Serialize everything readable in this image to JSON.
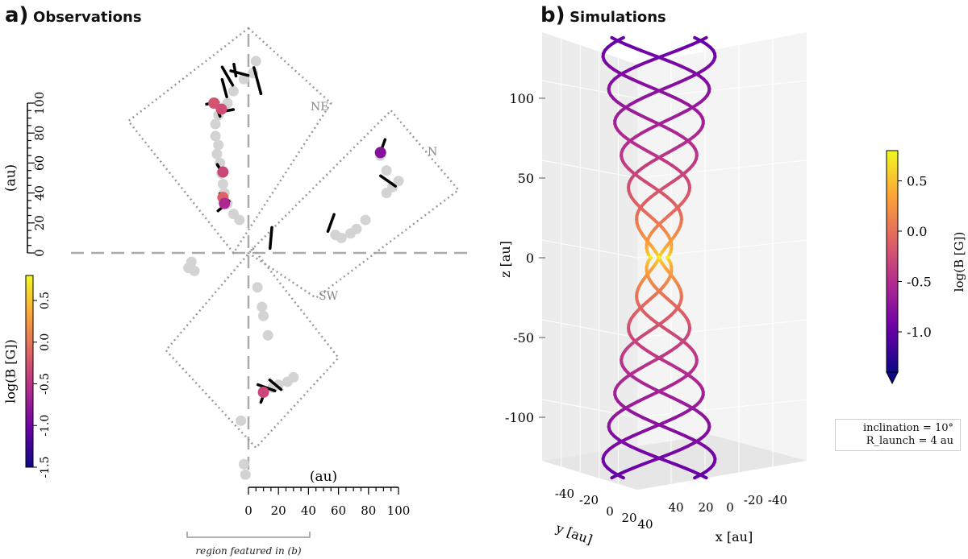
{
  "panel_a": {
    "letter": "a)",
    "title": "Observations",
    "region_labels": [
      "NE",
      "N",
      "SW"
    ],
    "region_note": "region featured in (b)"
  },
  "panel_b": {
    "letter": "b)",
    "title": "Simulations"
  },
  "colorbar_a": {
    "label": "log(B [G])",
    "ticks": [
      "0.5",
      "0.0",
      "-0.5",
      "-1.0",
      "-1.5"
    ],
    "colors": [
      "#0d0887",
      "#6a00a8",
      "#b12a90",
      "#e16462",
      "#fca636",
      "#f0f921"
    ]
  },
  "colorbar_b": {
    "label": "log(B [G])",
    "ticks": [
      "0.5",
      "0.0",
      "-0.5",
      "-1.0"
    ]
  },
  "legend": {
    "line1": "inclination = 10°",
    "line2": "R_launch = 4 au"
  },
  "chart_data": [
    {
      "type": "scatter",
      "panel": "a",
      "xlabel": "(au)",
      "ylabel": "(au)",
      "x_ticks": [
        "0",
        "20",
        "40",
        "60",
        "80",
        "100"
      ],
      "y_ticks": [
        "0",
        "20",
        "40",
        "60",
        "80",
        "100"
      ],
      "xlim": [
        -140,
        150
      ],
      "ylim": [
        -150,
        150
      ],
      "grid": false,
      "gray_points": [
        [
          3,
          120
        ],
        [
          5,
          128
        ],
        [
          -3,
          116
        ],
        [
          -10,
          108
        ],
        [
          -14,
          100
        ],
        [
          -20,
          92
        ],
        [
          -22,
          86
        ],
        [
          -22,
          78
        ],
        [
          -20,
          72
        ],
        [
          -21,
          66
        ],
        [
          -19,
          60
        ],
        [
          -18,
          53
        ],
        [
          -17,
          46
        ],
        [
          -16,
          40
        ],
        [
          -14,
          33
        ],
        [
          -10,
          26
        ],
        [
          -6,
          22
        ],
        [
          -38,
          -6
        ],
        [
          -40,
          -10
        ],
        [
          -36,
          -12
        ],
        [
          6,
          -23
        ],
        [
          9,
          -36
        ],
        [
          10,
          -42
        ],
        [
          13,
          -55
        ],
        [
          20,
          -88
        ],
        [
          26,
          -86
        ],
        [
          30,
          -83
        ],
        [
          16,
          -90
        ],
        [
          -5,
          -112
        ],
        [
          -3,
          -141
        ],
        [
          -2,
          -148
        ],
        [
          58,
          12
        ],
        [
          62,
          10
        ],
        [
          68,
          13
        ],
        [
          72,
          16
        ],
        [
          78,
          22
        ],
        [
          92,
          40
        ],
        [
          96,
          44
        ],
        [
          100,
          48
        ],
        [
          92,
          55
        ],
        [
          88,
          65
        ]
      ],
      "colored_points": [
        {
          "x": -23,
          "y": 100,
          "logB": -0.25
        },
        {
          "x": -18,
          "y": 96,
          "logB": -0.3
        },
        {
          "x": -17,
          "y": 54,
          "logB": -0.35
        },
        {
          "x": -17,
          "y": 37,
          "logB": -0.15
        },
        {
          "x": -16,
          "y": 33,
          "logB": -0.6
        },
        {
          "x": 88,
          "y": 67,
          "logB": -0.85
        },
        {
          "x": 10,
          "y": -93,
          "logB": -0.35
        }
      ],
      "vectors": [
        {
          "x": 6,
          "y": 115,
          "angle": -75,
          "len": 18
        },
        {
          "x": -6,
          "y": 120,
          "angle": -15,
          "len": 12
        },
        {
          "x": -14,
          "y": 118,
          "angle": -60,
          "len": 14
        },
        {
          "x": -16,
          "y": 110,
          "angle": -75,
          "len": 12
        },
        {
          "x": -9,
          "y": 122,
          "angle": -80,
          "len": 8
        },
        {
          "x": -24,
          "y": 100,
          "angle": 10,
          "len": 8
        },
        {
          "x": -20,
          "y": 94,
          "angle": -70,
          "len": 6
        },
        {
          "x": -14,
          "y": 95,
          "angle": 10,
          "len": 8
        },
        {
          "x": -16,
          "y": 37,
          "angle": -40,
          "len": 8
        },
        {
          "x": -19,
          "y": 56,
          "angle": -60,
          "len": 7
        },
        {
          "x": -18,
          "y": 30,
          "angle": 40,
          "len": 6
        },
        {
          "x": 89,
          "y": 70,
          "angle": 70,
          "len": 12
        },
        {
          "x": 93,
          "y": 48,
          "angle": -35,
          "len": 12
        },
        {
          "x": 15,
          "y": 10,
          "angle": 85,
          "len": 14
        },
        {
          "x": 55,
          "y": 20,
          "angle": 70,
          "len": 12
        },
        {
          "x": 12,
          "y": -90,
          "angle": -20,
          "len": 12
        },
        {
          "x": 18,
          "y": -88,
          "angle": -40,
          "len": 10
        },
        {
          "x": 10,
          "y": -95,
          "angle": 70,
          "len": 10
        }
      ],
      "regions": [
        {
          "label": "NE",
          "corners": [
            [
              0,
              150
            ],
            [
              55,
              100
            ],
            [
              -10,
              0
            ],
            [
              -80,
              88
            ]
          ]
        },
        {
          "label": "N",
          "corners": [
            [
              95,
              95
            ],
            [
              140,
              42
            ],
            [
              45,
              -30
            ],
            [
              0,
              0
            ]
          ]
        },
        {
          "label": "SW",
          "corners": [
            [
              3,
              3
            ],
            [
              60,
              -70
            ],
            [
              5,
              -130
            ],
            [
              -55,
              -65
            ]
          ]
        }
      ]
    },
    {
      "type": "line",
      "panel": "b",
      "xlabel": "x [au]",
      "ylabel": "y [au]",
      "zlabel": "z [au]",
      "z_ticks": [
        "100",
        "50",
        "0",
        "-50",
        "-100"
      ],
      "x_ticks": [
        "40",
        "20",
        "0",
        "-20",
        "-40"
      ],
      "y_ticks": [
        "-40",
        "-20",
        "0",
        "20",
        "40"
      ],
      "zlim": [
        -140,
        140
      ],
      "grid": true,
      "series": [
        {
          "phase": 0
        },
        {
          "phase": 90
        },
        {
          "phase": 180
        },
        {
          "phase": 270
        }
      ]
    }
  ]
}
